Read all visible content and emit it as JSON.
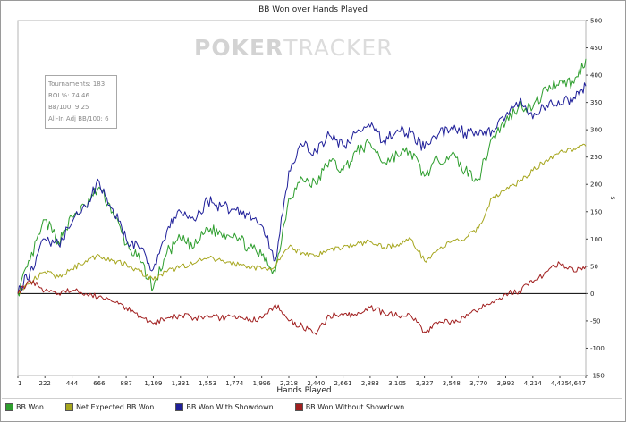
{
  "chart_data": {
    "type": "line",
    "title": "BB Won over Hands Played",
    "xlabel": "Hands Played",
    "ylabel": "$",
    "xlim": [
      1,
      4647
    ],
    "ylim": [
      -150,
      500
    ],
    "xticks": [
      1,
      222,
      444,
      666,
      887,
      1109,
      1331,
      1553,
      1774,
      1996,
      2218,
      2440,
      2661,
      2883,
      3105,
      3327,
      3548,
      3770,
      3992,
      4214,
      4435,
      4647
    ],
    "xtick_labels": [
      "1",
      "222",
      "444",
      "666",
      "887",
      "1,109",
      "1,331",
      "1,553",
      "1,774",
      "1,996",
      "2,218",
      "2,440",
      "2,661",
      "2,883",
      "3,105",
      "3,327",
      "3,548",
      "3,770",
      "3,992",
      "4,214",
      "4,435",
      "4,647"
    ],
    "yticks": [
      -150,
      -100,
      -50,
      0,
      50,
      100,
      150,
      200,
      250,
      300,
      350,
      400,
      450,
      500
    ],
    "grid": false,
    "legend_position": "bottom",
    "watermark": {
      "bold": "POKER",
      "light": "TRACKER"
    },
    "stats": [
      "Tournaments: 183",
      "ROI %: 74.46",
      "BB/100: 9.25",
      "All-In Adj BB/100: 6"
    ],
    "x": [
      1,
      100,
      222,
      333,
      444,
      555,
      666,
      777,
      887,
      1000,
      1109,
      1220,
      1331,
      1442,
      1553,
      1663,
      1774,
      1885,
      1996,
      2107,
      2218,
      2329,
      2440,
      2550,
      2661,
      2772,
      2883,
      2994,
      3105,
      3216,
      3327,
      3437,
      3548,
      3659,
      3770,
      3881,
      3992,
      4103,
      4214,
      4325,
      4435,
      4550,
      4647
    ],
    "series": [
      {
        "name": "BB Won",
        "color": "#2e9e2e",
        "values": [
          0,
          60,
          135,
          95,
          140,
          160,
          195,
          150,
          90,
          60,
          10,
          75,
          100,
          85,
          120,
          110,
          110,
          85,
          70,
          40,
          175,
          210,
          200,
          245,
          225,
          260,
          275,
          240,
          255,
          260,
          215,
          245,
          255,
          225,
          210,
          285,
          315,
          345,
          340,
          375,
          390,
          385,
          430
        ]
      },
      {
        "name": "Net Expected BB Won",
        "color": "#a6a61e",
        "values": [
          0,
          20,
          40,
          30,
          45,
          60,
          70,
          60,
          55,
          40,
          25,
          40,
          50,
          55,
          65,
          60,
          55,
          50,
          45,
          50,
          85,
          75,
          70,
          80,
          85,
          90,
          95,
          85,
          90,
          100,
          60,
          80,
          95,
          100,
          120,
          175,
          190,
          205,
          225,
          245,
          260,
          265,
          270
        ]
      },
      {
        "name": "BB Won With Showdown",
        "color": "#1f1f99",
        "values": [
          0,
          40,
          100,
          90,
          130,
          160,
          205,
          155,
          100,
          80,
          45,
          115,
          150,
          135,
          170,
          160,
          155,
          145,
          125,
          60,
          225,
          270,
          260,
          290,
          270,
          295,
          305,
          280,
          300,
          295,
          265,
          290,
          305,
          295,
          290,
          300,
          325,
          350,
          320,
          345,
          345,
          360,
          380
        ]
      },
      {
        "name": "BB Won Without Showdown",
        "color": "#a11f1f",
        "values": [
          0,
          25,
          5,
          0,
          5,
          0,
          -5,
          -15,
          -25,
          -40,
          -55,
          -45,
          -40,
          -45,
          -40,
          -45,
          -40,
          -50,
          -45,
          -20,
          -50,
          -60,
          -75,
          -40,
          -40,
          -40,
          -25,
          -35,
          -40,
          -40,
          -70,
          -55,
          -50,
          -45,
          -30,
          -15,
          0,
          5,
          20,
          40,
          55,
          40,
          50
        ]
      }
    ]
  }
}
